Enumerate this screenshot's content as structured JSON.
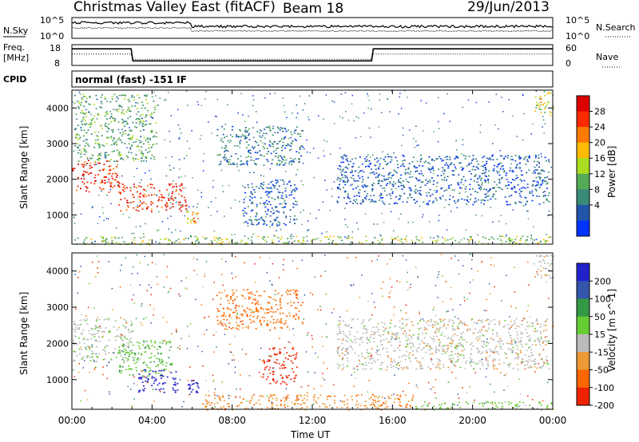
{
  "header": {
    "station": "Christmas Valley East (fitACF)",
    "beam": "Beam 18",
    "date": "29/Jun/2013"
  },
  "noise_panel": {
    "left_label": "N.Sky",
    "left_ticks": [
      "10^5",
      "10^0"
    ],
    "right_label": "N.Search",
    "right_ticks": [
      "10^5",
      "10^0"
    ]
  },
  "freq_panel": {
    "left_label_lines": [
      "Freq.",
      "[MHz]"
    ],
    "left_ticks": [
      "18",
      "8"
    ],
    "right_label": "Nave",
    "right_ticks": [
      "60",
      "0"
    ]
  },
  "cpid": {
    "label": "CPID",
    "value": "normal (fast) -151 IF"
  },
  "chart_data": [
    {
      "type": "heatmap",
      "title": "Power",
      "ylabel": "Slant Range [km]",
      "xlabel": "Time UT",
      "x_ticks": [
        "00:00",
        "04:00",
        "08:00",
        "12:00",
        "16:00",
        "20:00",
        "00:00"
      ],
      "y_ticks": [
        "1000",
        "2000",
        "3000",
        "4000"
      ],
      "ylim": [
        180,
        4500
      ],
      "xlim_hours": [
        0,
        24
      ],
      "colorbar": {
        "label": "Power [dB]",
        "ticks": [
          "4",
          "8",
          "12",
          "16",
          "20",
          "24",
          "28"
        ],
        "colors": [
          "#0033ff",
          "#2255aa",
          "#3a8a78",
          "#55aa55",
          "#aadd22",
          "#ffbb00",
          "#ff7a00",
          "#ff2a00",
          "#dd0000"
        ]
      }
    },
    {
      "type": "heatmap",
      "title": "Velocity",
      "ylabel": "Slant Range [km]",
      "xlabel": "Time UT",
      "x_ticks": [
        "00:00",
        "04:00",
        "08:00",
        "12:00",
        "16:00",
        "20:00",
        "00:00"
      ],
      "y_ticks": [
        "1000",
        "2000",
        "3000",
        "4000"
      ],
      "ylim": [
        180,
        4500
      ],
      "xlim_hours": [
        0,
        24
      ],
      "colorbar": {
        "label": "Velocity [m s^-1]",
        "ticks": [
          "200",
          "100",
          "50",
          "15",
          "-15",
          "-50",
          "-100",
          "-200"
        ],
        "colors": [
          "#2222cc",
          "#3355aa",
          "#339944",
          "#66cc33",
          "#bbbbbb",
          "#ee9933",
          "#ff6600",
          "#ee2200"
        ]
      }
    }
  ],
  "power_echo_regions": [
    {
      "t0": 0.0,
      "t1": 2.3,
      "r0": 1650,
      "r1": 2550,
      "level": 0.92
    },
    {
      "t0": 2.3,
      "t1": 5.7,
      "r0": 1100,
      "r1": 1900,
      "level": 0.9
    },
    {
      "t0": 5.7,
      "t1": 6.3,
      "r0": 750,
      "r1": 1100,
      "level": 0.7
    },
    {
      "t0": 0.1,
      "t1": 4.2,
      "r0": 2500,
      "r1": 4400,
      "level": 0.35
    },
    {
      "t0": 7.2,
      "t1": 11.5,
      "r0": 2400,
      "r1": 3500,
      "level": 0.2
    },
    {
      "t0": 8.5,
      "t1": 11.2,
      "r0": 700,
      "r1": 2000,
      "level": 0.12
    },
    {
      "t0": 13.2,
      "t1": 23.8,
      "r0": 1300,
      "r1": 2700,
      "level": 0.12
    },
    {
      "t0": 0.0,
      "t1": 24.0,
      "r0": 180,
      "r1": 420,
      "level": 0.45
    },
    {
      "t0": 23.0,
      "t1": 24.0,
      "r0": 3800,
      "r1": 4500,
      "level": 0.55
    }
  ],
  "velocity_echo_regions": [
    {
      "t0": 0.0,
      "t1": 3.0,
      "r0": 1500,
      "r1": 2700,
      "vel": 5
    },
    {
      "t0": 2.3,
      "t1": 5.0,
      "r0": 1100,
      "r1": 2100,
      "vel": 40
    },
    {
      "t0": 3.3,
      "t1": 5.3,
      "r0": 650,
      "r1": 1300,
      "vel": 220
    },
    {
      "t0": 5.7,
      "t1": 6.3,
      "r0": 650,
      "r1": 1000,
      "vel": 220
    },
    {
      "t0": 7.2,
      "t1": 11.5,
      "r0": 2400,
      "r1": 3500,
      "vel": -60
    },
    {
      "t0": 9.5,
      "t1": 11.2,
      "r0": 900,
      "r1": 1900,
      "vel": -150
    },
    {
      "t0": 13.2,
      "t1": 23.8,
      "r0": 1300,
      "r1": 2700,
      "vel": 0
    },
    {
      "t0": 6.5,
      "t1": 17.0,
      "r0": 180,
      "r1": 600,
      "vel": -40
    },
    {
      "t0": 17.0,
      "t1": 24.0,
      "r0": 180,
      "r1": 400,
      "vel": 30
    },
    {
      "t0": 23.0,
      "t1": 24.0,
      "r0": 3800,
      "r1": 4500,
      "vel": 0
    }
  ]
}
